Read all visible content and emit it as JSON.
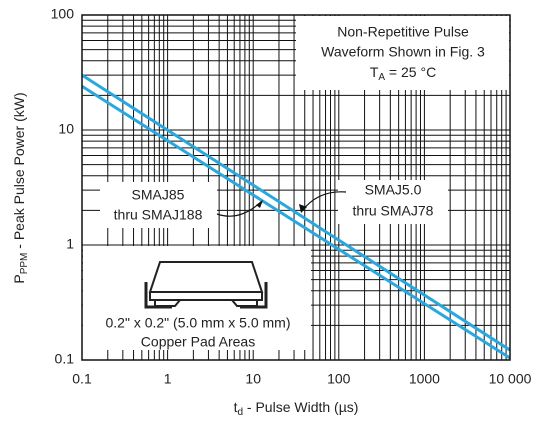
{
  "chart_data": {
    "type": "line",
    "x_label": {
      "main": "t",
      "sub": "d",
      "rest": " - Pulse Width (µs)"
    },
    "y_label": {
      "main": "P",
      "sub": "PPM",
      "rest": " - Peak Pulse Power (kW)"
    },
    "xscale": "log",
    "yscale": "log",
    "grid": true,
    "minor_grid": true,
    "xlim": [
      0.1,
      10000
    ],
    "ylim": [
      0.1,
      100
    ],
    "xticks": [
      0.1,
      1,
      10,
      100,
      1000,
      {
        "value": 10000,
        "label": "10 000"
      }
    ],
    "yticks": [
      0.1,
      1,
      10,
      100
    ],
    "series": [
      {
        "name": [
          "SMAJ5.0",
          "thru SMAJ78"
        ],
        "color": "#29a8e0",
        "x": [
          0.1,
          10000
        ],
        "values": [
          30,
          0.122
        ]
      },
      {
        "name": [
          "SMAJ85",
          "thru SMAJ188"
        ],
        "color": "#29a8e0",
        "x": [
          0.1,
          10000
        ],
        "values": [
          24,
          0.104
        ]
      }
    ],
    "annotations": {
      "conditions": {
        "line1": "Non-Repetitive Pulse",
        "line2": "Waveform Shown in Fig. 3",
        "temp": {
          "main": "T",
          "sub": "A",
          "rest": " = 25 °C"
        }
      },
      "pad": [
        "0.2\" x 0.2\" (5.0 mm x 5.0 mm)",
        "Copper Pad Areas"
      ]
    }
  }
}
